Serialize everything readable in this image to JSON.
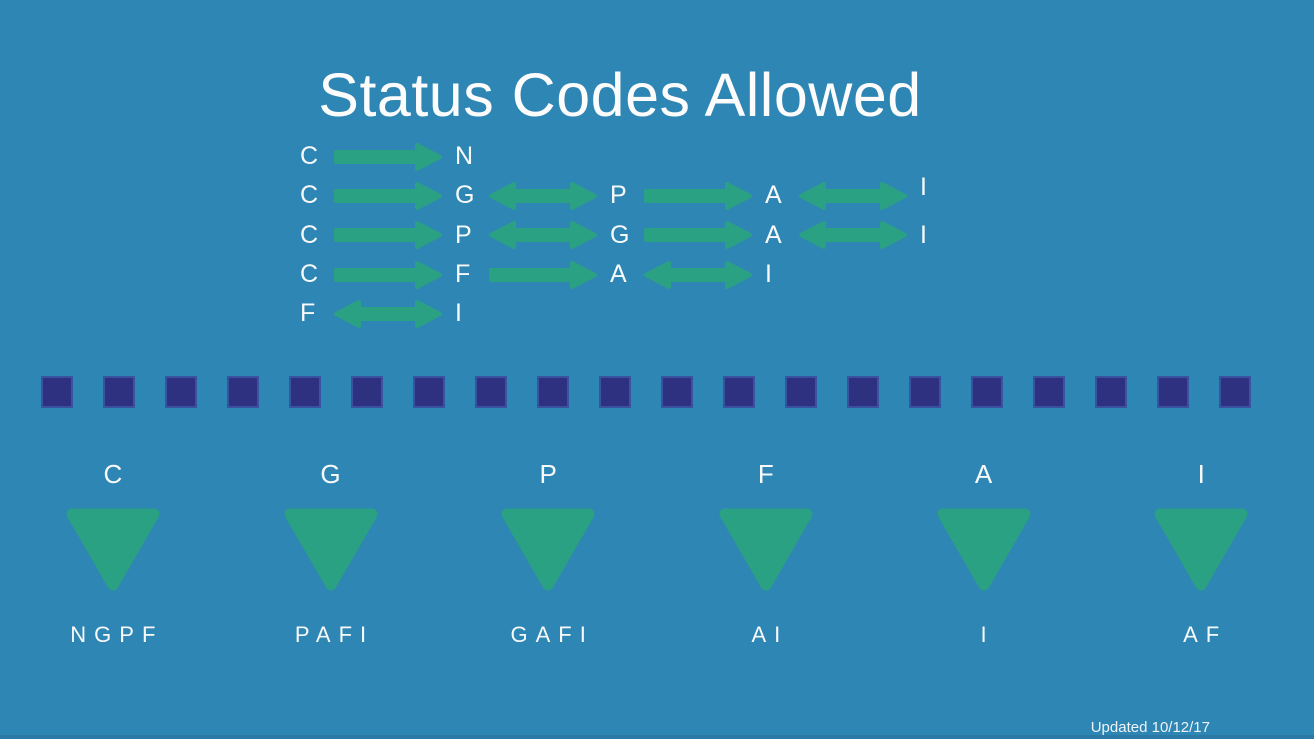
{
  "title": "Status Codes Allowed",
  "updated_note": "Updated 10/12/17",
  "colors": {
    "background": "#2E86B4",
    "arrow_green": "#2BA183",
    "triangle_green": "#2BA183",
    "square_navy": "#2D3180",
    "square_border": "#3A53A0",
    "bottom_bar": "#2B7AA5",
    "text": "#FBFBFB"
  },
  "transitions": {
    "rows": [
      {
        "cells": [
          {
            "type": "letter",
            "value": "C"
          },
          {
            "type": "arrow",
            "dir": "right"
          },
          {
            "type": "letter",
            "value": "N"
          }
        ]
      },
      {
        "cells": [
          {
            "type": "letter",
            "value": "C"
          },
          {
            "type": "arrow",
            "dir": "right"
          },
          {
            "type": "letter",
            "value": "G"
          },
          {
            "type": "arrow",
            "dir": "both"
          },
          {
            "type": "letter",
            "value": "P"
          },
          {
            "type": "arrow",
            "dir": "right"
          },
          {
            "type": "letter",
            "value": "A"
          },
          {
            "type": "arrow",
            "dir": "both"
          },
          {
            "type": "letter",
            "value": "I",
            "raised": true
          }
        ]
      },
      {
        "cells": [
          {
            "type": "letter",
            "value": "C"
          },
          {
            "type": "arrow",
            "dir": "right"
          },
          {
            "type": "letter",
            "value": "P"
          },
          {
            "type": "arrow",
            "dir": "both"
          },
          {
            "type": "letter",
            "value": "G"
          },
          {
            "type": "arrow",
            "dir": "right"
          },
          {
            "type": "letter",
            "value": "A"
          },
          {
            "type": "arrow",
            "dir": "both"
          },
          {
            "type": "letter",
            "value": "I"
          }
        ]
      },
      {
        "cells": [
          {
            "type": "letter",
            "value": "C"
          },
          {
            "type": "arrow",
            "dir": "right"
          },
          {
            "type": "letter",
            "value": "F"
          },
          {
            "type": "arrow",
            "dir": "right"
          },
          {
            "type": "letter",
            "value": "A"
          },
          {
            "type": "arrow",
            "dir": "both"
          },
          {
            "type": "letter",
            "value": "I"
          }
        ]
      },
      {
        "cells": [
          {
            "type": "letter",
            "value": "F"
          },
          {
            "type": "arrow",
            "dir": "both"
          },
          {
            "type": "letter",
            "value": "I"
          }
        ]
      }
    ]
  },
  "divider": {
    "square_count": 20
  },
  "status_columns": [
    {
      "code": "C",
      "allowed": "NGPF"
    },
    {
      "code": "G",
      "allowed": "PAFI"
    },
    {
      "code": "P",
      "allowed": "GAFI"
    },
    {
      "code": "F",
      "allowed": "AI"
    },
    {
      "code": "A",
      "allowed": "I"
    },
    {
      "code": "I",
      "allowed": "AF"
    }
  ]
}
